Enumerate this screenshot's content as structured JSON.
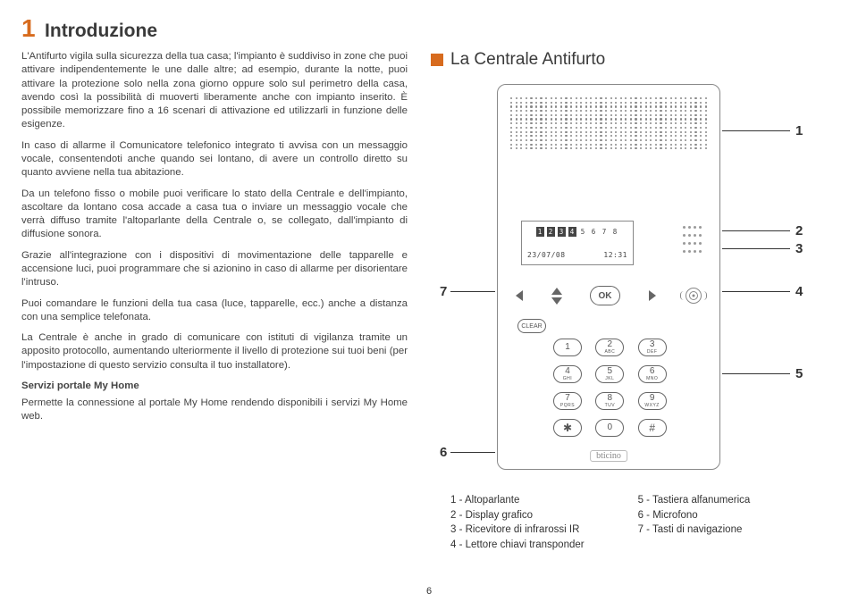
{
  "chapter": {
    "num": "1",
    "title": "Introduzione"
  },
  "body": {
    "p1": "L'Antifurto vigila sulla sicurezza della tua casa; l'impianto è suddiviso in zone che puoi attivare indipendentemente le une dalle altre; ad esempio, durante la notte, puoi attivare la protezione solo nella zona giorno oppure solo sul perimetro della casa, avendo così la possibilità di muoverti liberamente anche con impianto inserito. È possibile memorizzare fino a 16 scenari di attivazione ed utilizzarli in funzione delle esigenze.",
    "p2": "In caso di allarme il Comunicatore telefonico integrato ti avvisa con un messaggio vocale, consentendoti anche quando sei lontano, di avere un controllo diretto su quanto avviene nella tua abitazione.",
    "p3": "Da un telefono fisso o mobile puoi verificare lo stato della Centrale e dell'impianto, ascoltare da lontano cosa accade a casa tua o inviare un messaggio vocale che verrà diffuso tramite l'altoparlante della Centrale o, se collegato, dall'impianto di diffusione sonora.",
    "p4": "Grazie all'integrazione con i dispositivi di movimentazione delle tapparelle e accensione luci, puoi programmare che si azionino in caso di allarme per disorientare l'intruso.",
    "p5": "Puoi comandare le funzioni della tua casa (luce, tapparelle, ecc.) anche a distanza con una semplice telefonata.",
    "p6": "La Centrale è anche in grado di comunicare con istituti di vigilanza tramite un apposito protocollo, aumentando ulteriormente il livello di protezione sui tuoi beni (per l'impostazione di questo servizio consulta il tuo installatore).",
    "h1": "Servizi portale My Home",
    "p7": "Permette la connessione al portale My Home rendendo disponibili i servizi My Home web."
  },
  "section_title": "La Centrale Antifurto",
  "device": {
    "lcd_zones": [
      "1",
      "2",
      "3",
      "4",
      "5",
      "6",
      "7",
      "8"
    ],
    "lcd_date": "23/07/08",
    "lcd_time": "12:31",
    "ok_label": "OK",
    "clear_label": "CLEAR",
    "brand": "bticino",
    "keys": [
      {
        "n": "1",
        "s": ""
      },
      {
        "n": "2",
        "s": "ABC"
      },
      {
        "n": "3",
        "s": "DEF"
      },
      {
        "n": "4",
        "s": "GHI"
      },
      {
        "n": "5",
        "s": "JKL"
      },
      {
        "n": "6",
        "s": "MNO"
      },
      {
        "n": "7",
        "s": "PQRS"
      },
      {
        "n": "8",
        "s": "TUV"
      },
      {
        "n": "9",
        "s": "WXYZ"
      },
      {
        "n": "✱",
        "s": ""
      },
      {
        "n": "0",
        "s": ""
      },
      {
        "n": "#",
        "s": ""
      }
    ]
  },
  "callouts": {
    "c1": "1",
    "c2": "2",
    "c3": "3",
    "c4": "4",
    "c5": "5",
    "c6": "6",
    "c7": "7"
  },
  "legend": {
    "left": "1 - Altoparlante\n2 - Display grafico\n3 - Ricevitore di infrarossi IR\n4 - Lettore chiavi transponder",
    "right": "5 - Tastiera alfanumerica\n6 - Microfono\n7 - Tasti di navigazione"
  },
  "page_number": "6",
  "colors": {
    "accent": "#d76b1e",
    "text": "#3a3a3a",
    "line": "#333333"
  }
}
